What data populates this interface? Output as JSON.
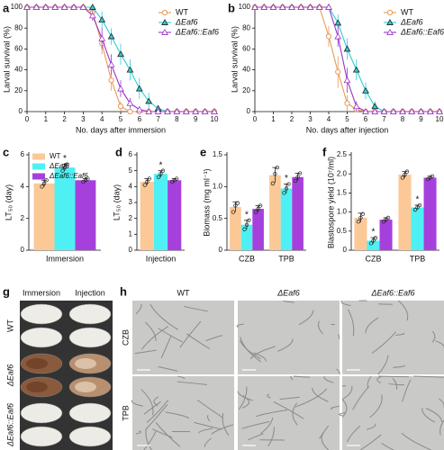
{
  "chart_data": [
    {
      "panel": "a",
      "type": "line",
      "xlabel": "No. days after immersion",
      "ylabel": "Larval survival (%)",
      "x": [
        0,
        0.5,
        1,
        1.5,
        2,
        2.5,
        3,
        3.5,
        4,
        4.5,
        5,
        5.5,
        6,
        6.5,
        7,
        7.5,
        8,
        8.5,
        9,
        9.5,
        10
      ],
      "xlim": [
        0,
        10
      ],
      "xticks": [
        0,
        1,
        2,
        3,
        4,
        5,
        6,
        7,
        8,
        9,
        10
      ],
      "ylim": [
        0,
        100
      ],
      "yticks": [
        0,
        20,
        40,
        60,
        80,
        100
      ],
      "legend": "upper right",
      "series": [
        {
          "name": "WT",
          "color": "#e89a55",
          "marker": "circle-open",
          "values": [
            100,
            100,
            100,
            100,
            100,
            100,
            100,
            95,
            65,
            30,
            5,
            0,
            0,
            0,
            0,
            0,
            0,
            0,
            0,
            0,
            0
          ],
          "errors": [
            0,
            0,
            0,
            0,
            0,
            0,
            0,
            5,
            10,
            10,
            5,
            0,
            0,
            0,
            0,
            0,
            0,
            0,
            0,
            0,
            0
          ]
        },
        {
          "name": "ΔEaf6",
          "color": "#2fcbd6",
          "marker": "triangle-filled",
          "values": [
            100,
            100,
            100,
            100,
            100,
            100,
            100,
            100,
            88,
            72,
            55,
            40,
            22,
            10,
            3,
            0,
            0,
            0,
            0,
            0,
            0
          ],
          "errors": [
            0,
            0,
            0,
            0,
            0,
            0,
            0,
            0,
            8,
            8,
            10,
            10,
            10,
            8,
            3,
            0,
            0,
            0,
            0,
            0,
            0
          ]
        },
        {
          "name": "ΔEaf6::Eaf6",
          "color": "#9a34c8",
          "marker": "triangle-open",
          "values": [
            100,
            100,
            100,
            100,
            100,
            100,
            100,
            92,
            70,
            45,
            22,
            8,
            2,
            0,
            0,
            0,
            0,
            0,
            0,
            0,
            0
          ],
          "errors": [
            0,
            0,
            0,
            0,
            0,
            0,
            0,
            5,
            10,
            10,
            8,
            5,
            2,
            0,
            0,
            0,
            0,
            0,
            0,
            0,
            0
          ]
        }
      ]
    },
    {
      "panel": "b",
      "type": "line",
      "xlabel": "No. days after injection",
      "ylabel": "Larval survival (%)",
      "x": [
        0,
        0.5,
        1,
        1.5,
        2,
        2.5,
        3,
        3.5,
        4,
        4.5,
        5,
        5.5,
        6,
        6.5,
        7,
        7.5,
        8,
        8.5,
        9,
        9.5,
        10
      ],
      "xlim": [
        0,
        10
      ],
      "xticks": [
        0,
        1,
        2,
        3,
        4,
        5,
        6,
        7,
        8,
        9,
        10
      ],
      "ylim": [
        0,
        100
      ],
      "yticks": [
        0,
        20,
        40,
        60,
        80,
        100
      ],
      "legend": "upper right",
      "series": [
        {
          "name": "WT",
          "color": "#e89a55",
          "marker": "circle-open",
          "values": [
            100,
            100,
            100,
            100,
            100,
            100,
            100,
            100,
            72,
            38,
            8,
            2,
            0,
            0,
            0,
            0,
            0,
            0,
            0,
            0,
            0
          ],
          "errors": [
            0,
            0,
            0,
            0,
            0,
            0,
            0,
            0,
            10,
            15,
            8,
            2,
            0,
            0,
            0,
            0,
            0,
            0,
            0,
            0,
            0
          ]
        },
        {
          "name": "ΔEaf6",
          "color": "#2fcbd6",
          "marker": "triangle-filled",
          "values": [
            100,
            100,
            100,
            100,
            100,
            100,
            100,
            100,
            100,
            85,
            60,
            40,
            20,
            5,
            0,
            0,
            0,
            0,
            0,
            0,
            0
          ],
          "errors": [
            0,
            0,
            0,
            0,
            0,
            0,
            0,
            0,
            0,
            8,
            10,
            10,
            8,
            5,
            0,
            0,
            0,
            0,
            0,
            0,
            0
          ]
        },
        {
          "name": "ΔEaf6::Eaf6",
          "color": "#9a34c8",
          "marker": "triangle-open",
          "values": [
            100,
            100,
            100,
            100,
            100,
            100,
            100,
            100,
            100,
            72,
            30,
            5,
            0,
            0,
            0,
            0,
            0,
            0,
            0,
            0,
            0
          ],
          "errors": [
            0,
            0,
            0,
            0,
            0,
            0,
            0,
            0,
            0,
            10,
            12,
            5,
            0,
            0,
            0,
            0,
            0,
            0,
            0,
            0,
            0
          ]
        }
      ]
    },
    {
      "panel": "c",
      "type": "bar",
      "ylabel": "LT₅₀ (day)",
      "categories": [
        "Immersion"
      ],
      "ylim": [
        0,
        6
      ],
      "yticks": [
        0,
        2,
        4,
        6
      ],
      "legend": "upper left",
      "series": [
        {
          "name": "WT",
          "color": "#fbc896",
          "values": [
            4.2
          ],
          "errors": [
            0.2
          ],
          "points": [
            [
              4.0,
              4.2,
              4.4
            ]
          ]
        },
        {
          "name": "ΔEaf6",
          "color": "#4ff0f4",
          "values": [
            5.2
          ],
          "errors": [
            0.2
          ],
          "points": [
            [
              5.0,
              5.2,
              5.4
            ]
          ],
          "significance": [
            "*"
          ]
        },
        {
          "name": "ΔEaf6::Eaf6",
          "color": "#a640dc",
          "values": [
            4.4
          ],
          "errors": [
            0.1
          ],
          "points": [
            [
              4.3,
              4.4,
              4.5
            ]
          ]
        }
      ]
    },
    {
      "panel": "d",
      "type": "bar",
      "ylabel": "LT₅₀ (day)",
      "categories": [
        "Injection"
      ],
      "ylim": [
        0,
        6
      ],
      "yticks": [
        0,
        1,
        2,
        3,
        4,
        5,
        6
      ],
      "series": [
        {
          "name": "WT",
          "color": "#fbc896",
          "values": [
            4.3
          ],
          "errors": [
            0.2
          ],
          "points": [
            [
              4.1,
              4.3,
              4.5
            ]
          ]
        },
        {
          "name": "ΔEaf6",
          "color": "#4ff0f4",
          "values": [
            4.8
          ],
          "errors": [
            0.2
          ],
          "points": [
            [
              4.6,
              4.8,
              5.0
            ]
          ],
          "significance": [
            "*"
          ]
        },
        {
          "name": "ΔEaf6::Eaf6",
          "color": "#a640dc",
          "values": [
            4.4
          ],
          "errors": [
            0.1
          ],
          "points": [
            [
              4.3,
              4.4,
              4.5
            ]
          ]
        }
      ]
    },
    {
      "panel": "e",
      "type": "bar",
      "ylabel": "Biomass (mg ml⁻¹)",
      "categories": [
        "CZB",
        "TPB"
      ],
      "ylim": [
        0,
        1.5
      ],
      "yticks": [
        0,
        0.5,
        {
          "value": 1,
          "label": "1.0"
        },
        1.5
      ],
      "series": [
        {
          "name": "WT",
          "color": "#fbc896",
          "values": [
            0.68,
            1.18
          ],
          "errors": [
            0.08,
            0.12
          ],
          "points": [
            [
              0.6,
              0.7,
              0.74
            ],
            [
              1.05,
              1.2,
              1.3
            ]
          ]
        },
        {
          "name": "ΔEaf6",
          "color": "#4ff0f4",
          "values": [
            0.4,
            0.97
          ],
          "errors": [
            0.07,
            0.07
          ],
          "points": [
            [
              0.33,
              0.4,
              0.47
            ],
            [
              0.9,
              0.97,
              1.04
            ]
          ],
          "significance": [
            "*",
            "*"
          ]
        },
        {
          "name": "ΔEaf6::Eaf6",
          "color": "#a640dc",
          "values": [
            0.65,
            1.15
          ],
          "errors": [
            0.05,
            0.06
          ],
          "points": [
            [
              0.6,
              0.65,
              0.7
            ],
            [
              1.09,
              1.15,
              1.21
            ]
          ]
        }
      ]
    },
    {
      "panel": "f",
      "type": "bar",
      "ylabel": "Blastospore yield (10⁷/ml)",
      "categories": [
        "CZB",
        "TPB"
      ],
      "ylim": [
        0,
        2.5
      ],
      "yticks": [
        0,
        0.5,
        {
          "value": 1,
          "label": "1.0"
        },
        1.5,
        {
          "value": 2,
          "label": "2.0"
        },
        2.5
      ],
      "series": [
        {
          "name": "WT",
          "color": "#fbc896",
          "values": [
            0.85,
            1.98
          ],
          "errors": [
            0.12,
            0.08
          ],
          "points": [
            [
              0.75,
              0.85,
              0.95
            ],
            [
              1.9,
              1.98,
              2.06
            ]
          ]
        },
        {
          "name": "ΔEaf6",
          "color": "#4ff0f4",
          "values": [
            0.25,
            1.12
          ],
          "errors": [
            0.08,
            0.06
          ],
          "points": [
            [
              0.18,
              0.25,
              0.32
            ],
            [
              1.06,
              1.12,
              1.18
            ]
          ],
          "significance": [
            "*",
            "*"
          ]
        },
        {
          "name": "ΔEaf6::Eaf6",
          "color": "#a640dc",
          "values": [
            0.8,
            1.9
          ],
          "errors": [
            0.05,
            0.04
          ],
          "points": [
            [
              0.75,
              0.8,
              0.85
            ],
            [
              1.86,
              1.9,
              1.94
            ]
          ]
        }
      ]
    }
  ],
  "image_panels": [
    {
      "panel": "g",
      "columns": [
        "Immersion",
        "Injection"
      ],
      "rows": [
        "WT",
        "ΔEaf6",
        "ΔEaf6::Eaf6"
      ]
    },
    {
      "panel": "h",
      "columns": [
        "WT",
        "ΔEaf6",
        "ΔEaf6::Eaf6"
      ],
      "rows": [
        "CZB",
        "TPB"
      ]
    }
  ]
}
